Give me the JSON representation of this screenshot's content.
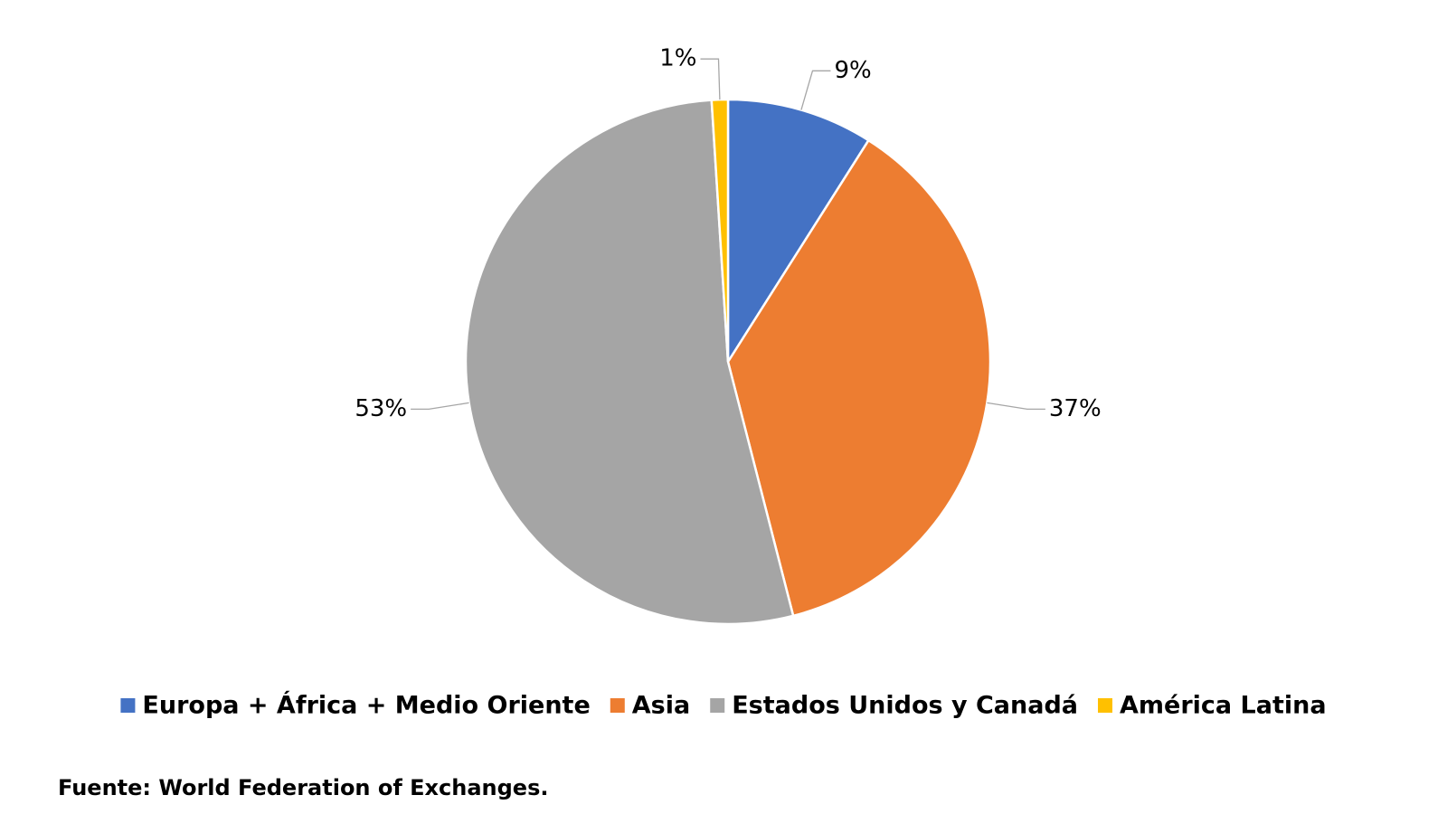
{
  "chart_data": {
    "type": "pie",
    "categories": [
      "Europa + África + Medio Oriente",
      "Asia",
      "Estados Unidos y Canadá",
      "América Latina"
    ],
    "values": [
      9,
      37,
      53,
      1
    ],
    "value_labels": [
      "9%",
      "37%",
      "53%",
      "1%"
    ],
    "colors": [
      "#4472c4",
      "#ed7d31",
      "#a5a5a5",
      "#ffc000"
    ],
    "legend": "bottom",
    "source": "Fuente: World Federation of Exchanges."
  }
}
